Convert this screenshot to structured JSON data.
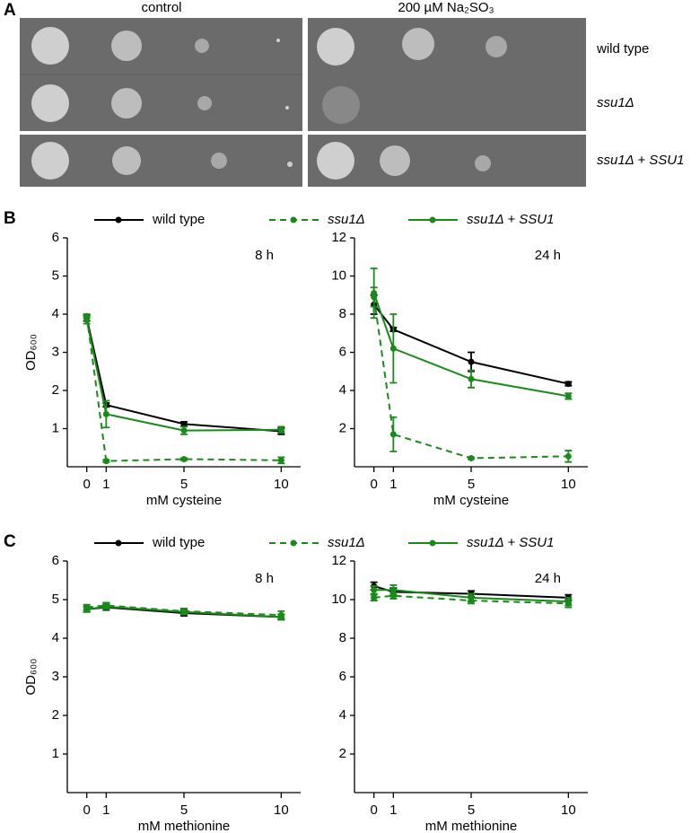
{
  "panels": [
    "A",
    "B",
    "C"
  ],
  "panel_a": {
    "columns": [
      "control",
      "200 µM Na₂SO₃"
    ],
    "rows": [
      "wild type",
      "ssu1Δ",
      "ssu1Δ + SSU1"
    ]
  },
  "chart_data": [
    {
      "type": "line",
      "annotation": "8 h",
      "x_label": "mM cysteine",
      "y_label": "OD₆₀₀",
      "x": [
        0,
        1,
        5,
        10
      ],
      "xlim": [
        -1,
        11
      ],
      "xticks": [
        0,
        1,
        5,
        10
      ],
      "ylim": [
        0,
        6
      ],
      "yticks": [
        1,
        2,
        3,
        4,
        5,
        6
      ],
      "series": [
        {
          "name": "wild type",
          "color": "#000000",
          "line_style": "solid",
          "values": [
            3.9,
            1.62,
            1.12,
            0.93
          ],
          "errors": [
            0.08,
            0.05,
            0.06,
            0.08
          ]
        },
        {
          "name": "ssu1Δ",
          "color": "#1a8a1a",
          "line_style": "dashed",
          "values": [
            3.95,
            0.15,
            0.2,
            0.17
          ],
          "errors": [
            0.05,
            0.03,
            0.03,
            0.08
          ]
        },
        {
          "name": "ssu1Δ + SSU1",
          "color": "#1a8a1a",
          "line_style": "solid",
          "values": [
            3.85,
            1.38,
            0.95,
            0.97
          ],
          "errors": [
            0.1,
            0.35,
            0.1,
            0.08
          ]
        }
      ]
    },
    {
      "type": "line",
      "annotation": "24 h",
      "x_label": "mM cysteine",
      "x": [
        0,
        1,
        5,
        10
      ],
      "xlim": [
        -1,
        11
      ],
      "xticks": [
        0,
        1,
        5,
        10
      ],
      "ylim": [
        0,
        12
      ],
      "yticks": [
        2,
        4,
        6,
        8,
        10,
        12
      ],
      "series": [
        {
          "color": "#000000",
          "line_style": "solid",
          "values": [
            8.5,
            7.2,
            5.5,
            4.35
          ],
          "errors": [
            0.5,
            0.1,
            0.5,
            0.1
          ]
        },
        {
          "color": "#1a8a1a",
          "line_style": "dashed",
          "values": [
            8.9,
            1.7,
            0.45,
            0.55
          ],
          "errors": [
            0.5,
            0.9,
            0.05,
            0.3
          ]
        },
        {
          "color": "#1a8a1a",
          "line_style": "solid",
          "values": [
            9.1,
            6.2,
            4.6,
            3.7
          ],
          "errors": [
            1.3,
            1.8,
            0.45,
            0.15
          ]
        }
      ]
    },
    {
      "type": "line",
      "annotation": "8 h",
      "x_label": "mM methionine",
      "y_label": "OD₆₀₀",
      "x": [
        0,
        1,
        5,
        10
      ],
      "xlim": [
        -1,
        11
      ],
      "xticks": [
        0,
        1,
        5,
        10
      ],
      "ylim": [
        0,
        6
      ],
      "yticks": [
        1,
        2,
        3,
        4,
        5,
        6
      ],
      "series": [
        {
          "name": "wild type",
          "color": "#000000",
          "line_style": "solid",
          "values": [
            4.75,
            4.8,
            4.65,
            4.55
          ],
          "errors": [
            0.07,
            0.07,
            0.07,
            0.07
          ]
        },
        {
          "name": "ssu1Δ",
          "color": "#1a8a1a",
          "line_style": "dashed",
          "values": [
            4.8,
            4.85,
            4.7,
            4.6
          ],
          "errors": [
            0.07,
            0.07,
            0.07,
            0.1
          ]
        },
        {
          "name": "ssu1Δ + SSU1",
          "color": "#1a8a1a",
          "line_style": "solid",
          "values": [
            4.75,
            4.82,
            4.68,
            4.55
          ],
          "errors": [
            0.07,
            0.07,
            0.07,
            0.07
          ]
        }
      ]
    },
    {
      "type": "line",
      "annotation": "24 h",
      "x_label": "mM methionine",
      "x": [
        0,
        1,
        5,
        10
      ],
      "xlim": [
        -1,
        11
      ],
      "xticks": [
        0,
        1,
        5,
        10
      ],
      "ylim": [
        0,
        12
      ],
      "yticks": [
        2,
        4,
        6,
        8,
        10,
        12
      ],
      "series": [
        {
          "color": "#000000",
          "line_style": "solid",
          "values": [
            10.7,
            10.4,
            10.3,
            10.1
          ],
          "errors": [
            0.2,
            0.2,
            0.15,
            0.15
          ]
        },
        {
          "color": "#1a8a1a",
          "line_style": "dashed",
          "values": [
            10.1,
            10.2,
            9.95,
            9.8
          ],
          "errors": [
            0.15,
            0.15,
            0.15,
            0.2
          ]
        },
        {
          "color": "#1a8a1a",
          "line_style": "solid",
          "values": [
            10.5,
            10.5,
            10.1,
            9.9
          ],
          "errors": [
            0.2,
            0.25,
            0.2,
            0.2
          ]
        }
      ]
    }
  ]
}
